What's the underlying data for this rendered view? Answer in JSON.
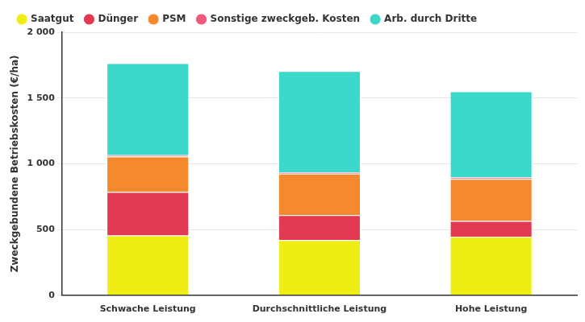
{
  "chart_data": {
    "type": "bar",
    "stacked": true,
    "y_label": "Zweckgebundene Betriebskosten (€/ha)",
    "categories": [
      "Schwache Leistung",
      "Durchschnittliche Leistung",
      "Hohe Leistung"
    ],
    "series": [
      {
        "name": "Saatgut",
        "color": "#eeee14",
        "values": [
          455,
          420,
          445
        ]
      },
      {
        "name": "Dünger",
        "color": "#e13a52",
        "values": [
          330,
          190,
          120
        ]
      },
      {
        "name": "PSM",
        "color": "#f5892e",
        "values": [
          270,
          315,
          320
        ]
      },
      {
        "name": "Sonstige zweckgeb. Kosten",
        "color": "#f2577d",
        "values": [
          10,
          10,
          10
        ]
      },
      {
        "name": "Arb. durch Dritte",
        "color": "#3dd8cc",
        "values": [
          700,
          770,
          655
        ]
      }
    ],
    "ylim": [
      0,
      2000
    ],
    "yticks": [
      {
        "value": 0,
        "label": "0"
      },
      {
        "value": 500,
        "label": "500"
      },
      {
        "value": 1000,
        "label": "1 000"
      },
      {
        "value": 1500,
        "label": "1 500"
      },
      {
        "value": 2000,
        "label": "2 000"
      }
    ],
    "grid": true,
    "legend": "top"
  }
}
